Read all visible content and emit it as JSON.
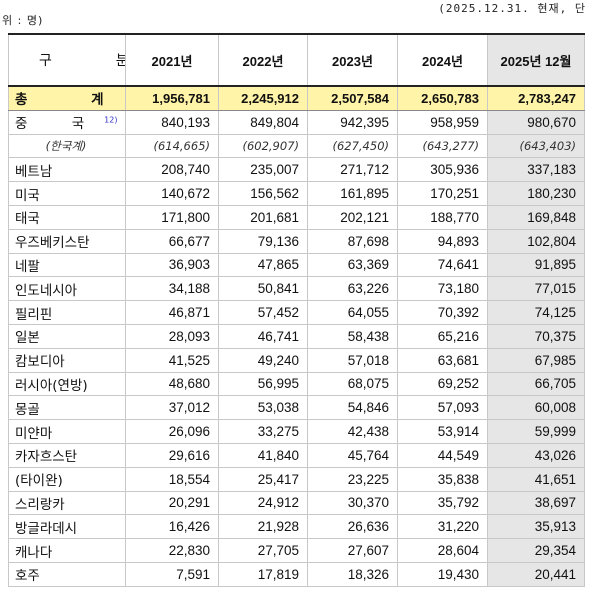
{
  "header": {
    "unit_left": "위 : 명)",
    "unit_right": "(2025.12.31. 현재, 단"
  },
  "table": {
    "columns": [
      "구 분",
      "2021년",
      "2022년",
      "2023년",
      "2024년",
      "2025년 12월"
    ],
    "total": {
      "label": "총 계",
      "values": [
        "1,956,781",
        "2,245,912",
        "2,507,584",
        "2,650,783",
        "2,783,247"
      ]
    },
    "china": {
      "label": "중 국",
      "footnote": "12)",
      "values": [
        "840,193",
        "849,804",
        "942,395",
        "958,959",
        "980,670"
      ]
    },
    "korean_chinese": {
      "label": "(한국계)",
      "values": [
        "(614,665)",
        "(602,907)",
        "(627,450)",
        "(643,277)",
        "(643,403)"
      ]
    },
    "rows": [
      {
        "label": "베트남",
        "values": [
          "208,740",
          "235,007",
          "271,712",
          "305,936",
          "337,183"
        ]
      },
      {
        "label": "미국",
        "values": [
          "140,672",
          "156,562",
          "161,895",
          "170,251",
          "180,230"
        ]
      },
      {
        "label": "태국",
        "values": [
          "171,800",
          "201,681",
          "202,121",
          "188,770",
          "169,848"
        ]
      },
      {
        "label": "우즈베키스탄",
        "values": [
          "66,677",
          "79,136",
          "87,698",
          "94,893",
          "102,804"
        ]
      },
      {
        "label": "네팔",
        "values": [
          "36,903",
          "47,865",
          "63,369",
          "74,641",
          "91,895"
        ]
      },
      {
        "label": "인도네시아",
        "values": [
          "34,188",
          "50,841",
          "63,226",
          "73,180",
          "77,015"
        ]
      },
      {
        "label": "필리핀",
        "values": [
          "46,871",
          "57,452",
          "64,055",
          "70,392",
          "74,125"
        ]
      },
      {
        "label": "일본",
        "values": [
          "28,093",
          "46,741",
          "58,438",
          "65,216",
          "70,375"
        ]
      },
      {
        "label": "캄보디아",
        "values": [
          "41,525",
          "49,240",
          "57,018",
          "63,681",
          "67,985"
        ]
      },
      {
        "label": "러시아(연방)",
        "values": [
          "48,680",
          "56,995",
          "68,075",
          "69,252",
          "66,705"
        ]
      },
      {
        "label": "몽골",
        "values": [
          "37,012",
          "53,038",
          "54,846",
          "57,093",
          "60,008"
        ]
      },
      {
        "label": "미얀마",
        "values": [
          "26,096",
          "33,275",
          "42,438",
          "53,914",
          "59,999"
        ]
      },
      {
        "label": "카자흐스탄",
        "values": [
          "29,616",
          "41,840",
          "45,764",
          "44,549",
          "43,026"
        ]
      },
      {
        "label": "(타이완)",
        "values": [
          "18,554",
          "25,417",
          "23,225",
          "35,838",
          "41,651"
        ]
      },
      {
        "label": "스리랑카",
        "values": [
          "20,291",
          "24,912",
          "30,370",
          "35,792",
          "38,697"
        ]
      },
      {
        "label": "방글라데시",
        "values": [
          "16,426",
          "21,928",
          "26,636",
          "31,220",
          "35,913"
        ]
      },
      {
        "label": "캐나다",
        "values": [
          "22,830",
          "27,705",
          "27,607",
          "28,604",
          "29,354"
        ]
      },
      {
        "label": "호주",
        "values": [
          "7,591",
          "17,819",
          "18,326",
          "19,430",
          "20,441"
        ]
      }
    ]
  }
}
